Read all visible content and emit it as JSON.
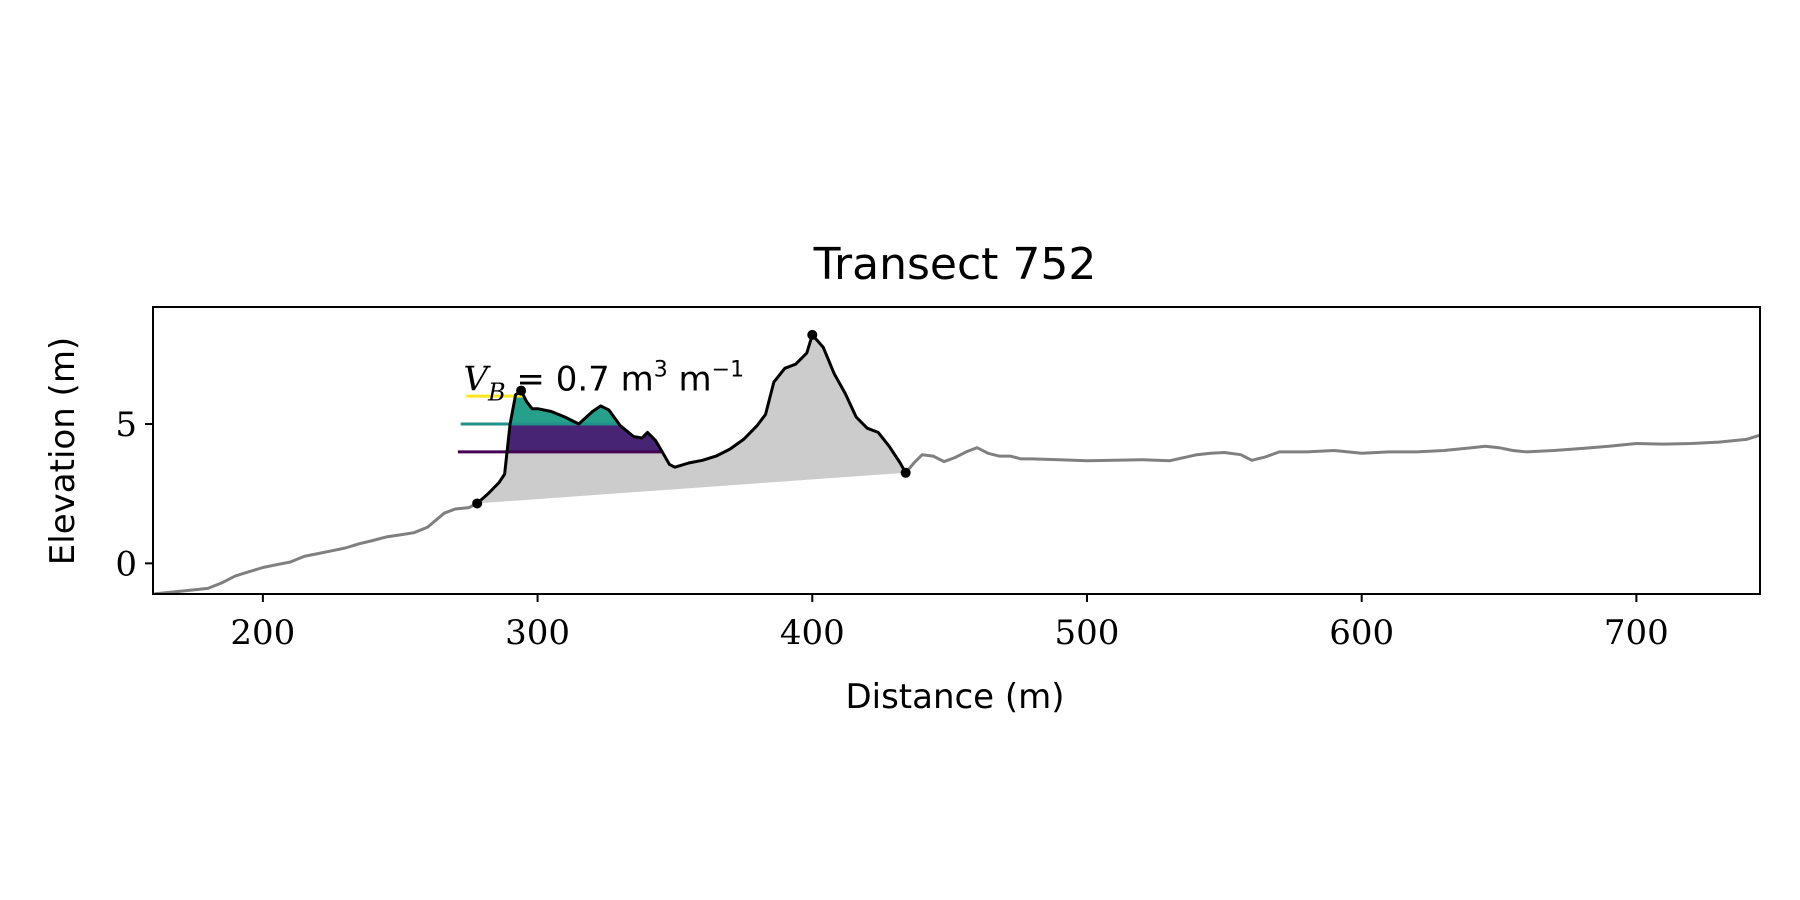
{
  "chart_data": {
    "type": "line",
    "title": "Transect 752",
    "xlabel": "Distance (m)",
    "ylabel": "Elevation (m)",
    "xlim": [
      160,
      745
    ],
    "ylim": [
      -1.1,
      9.2
    ],
    "xticks": [
      200,
      300,
      400,
      500,
      600,
      700
    ],
    "yticks": [
      0,
      5
    ],
    "grid": false,
    "annotation": {
      "var": "V",
      "sub": "B",
      "text": " = 0.7 m",
      "sup1": "3",
      "mid": " m",
      "sup2": "−1",
      "x": 273,
      "y": 6.2
    },
    "profile": {
      "color": "#808080",
      "x": [
        160,
        170,
        180,
        185,
        190,
        195,
        200,
        205,
        210,
        215,
        220,
        225,
        230,
        235,
        240,
        245,
        250,
        255,
        260,
        263,
        266,
        270,
        275,
        278
      ],
      "y": [
        -1.1,
        -1.0,
        -0.9,
        -0.7,
        -0.45,
        -0.3,
        -0.15,
        -0.05,
        0.05,
        0.25,
        0.35,
        0.45,
        0.55,
        0.7,
        0.82,
        0.95,
        1.02,
        1.1,
        1.3,
        1.55,
        1.8,
        1.95,
        2.0,
        2.15
      ]
    },
    "profile_right": {
      "color": "#808080",
      "x": [
        434,
        437,
        440,
        444,
        448,
        452,
        456,
        460,
        464,
        468,
        472,
        476,
        480,
        490,
        500,
        510,
        520,
        530,
        540,
        545,
        550,
        556,
        560,
        565,
        570,
        580,
        590,
        600,
        610,
        620,
        630,
        640,
        645,
        650,
        655,
        660,
        670,
        680,
        690,
        695,
        700,
        710,
        720,
        730,
        740,
        745
      ],
      "y": [
        3.25,
        3.6,
        3.9,
        3.85,
        3.65,
        3.8,
        4.0,
        4.15,
        3.95,
        3.85,
        3.85,
        3.75,
        3.75,
        3.72,
        3.68,
        3.7,
        3.72,
        3.68,
        3.9,
        3.95,
        3.98,
        3.9,
        3.7,
        3.82,
        4.0,
        4.0,
        4.05,
        3.95,
        4.0,
        4.0,
        4.05,
        4.15,
        4.2,
        4.15,
        4.05,
        4.0,
        4.05,
        4.12,
        4.2,
        4.25,
        4.3,
        4.28,
        4.3,
        4.35,
        4.45,
        4.6
      ]
    },
    "dune": {
      "color": "#000000",
      "fill": "#cccccc",
      "x": [
        278,
        282,
        286,
        288,
        290,
        292,
        294,
        296,
        298,
        300,
        305,
        310,
        315,
        320,
        323,
        326,
        330,
        335,
        338,
        340,
        343,
        346,
        348,
        350,
        355,
        360,
        365,
        370,
        375,
        380,
        383,
        386,
        390,
        394,
        398,
        400,
        404,
        408,
        412,
        416,
        420,
        424,
        428,
        432,
        434
      ],
      "y": [
        2.15,
        2.5,
        2.9,
        3.2,
        5.0,
        6.05,
        6.2,
        5.8,
        5.55,
        5.55,
        5.45,
        5.25,
        5.0,
        5.45,
        5.65,
        5.5,
        4.95,
        4.55,
        4.5,
        4.7,
        4.4,
        3.9,
        3.55,
        3.45,
        3.6,
        3.7,
        3.85,
        4.1,
        4.45,
        4.95,
        5.35,
        6.5,
        7.0,
        7.15,
        7.55,
        8.2,
        7.75,
        6.8,
        6.1,
        5.25,
        4.85,
        4.7,
        4.2,
        3.6,
        3.25
      ]
    },
    "markers": [
      {
        "x": 278,
        "y": 2.15
      },
      {
        "x": 294,
        "y": 6.2
      },
      {
        "x": 400,
        "y": 8.2
      },
      {
        "x": 434,
        "y": 3.25
      }
    ],
    "water_levels": [
      {
        "level": 4.0,
        "color": "#440154",
        "fill": "#482475",
        "x_start": 271
      },
      {
        "level": 5.0,
        "color": "#21918c",
        "fill": "#26a08a",
        "x_start": 272
      },
      {
        "level": 6.0,
        "color": "#fde725",
        "fill": "#fde725",
        "x_start": 274
      }
    ]
  }
}
